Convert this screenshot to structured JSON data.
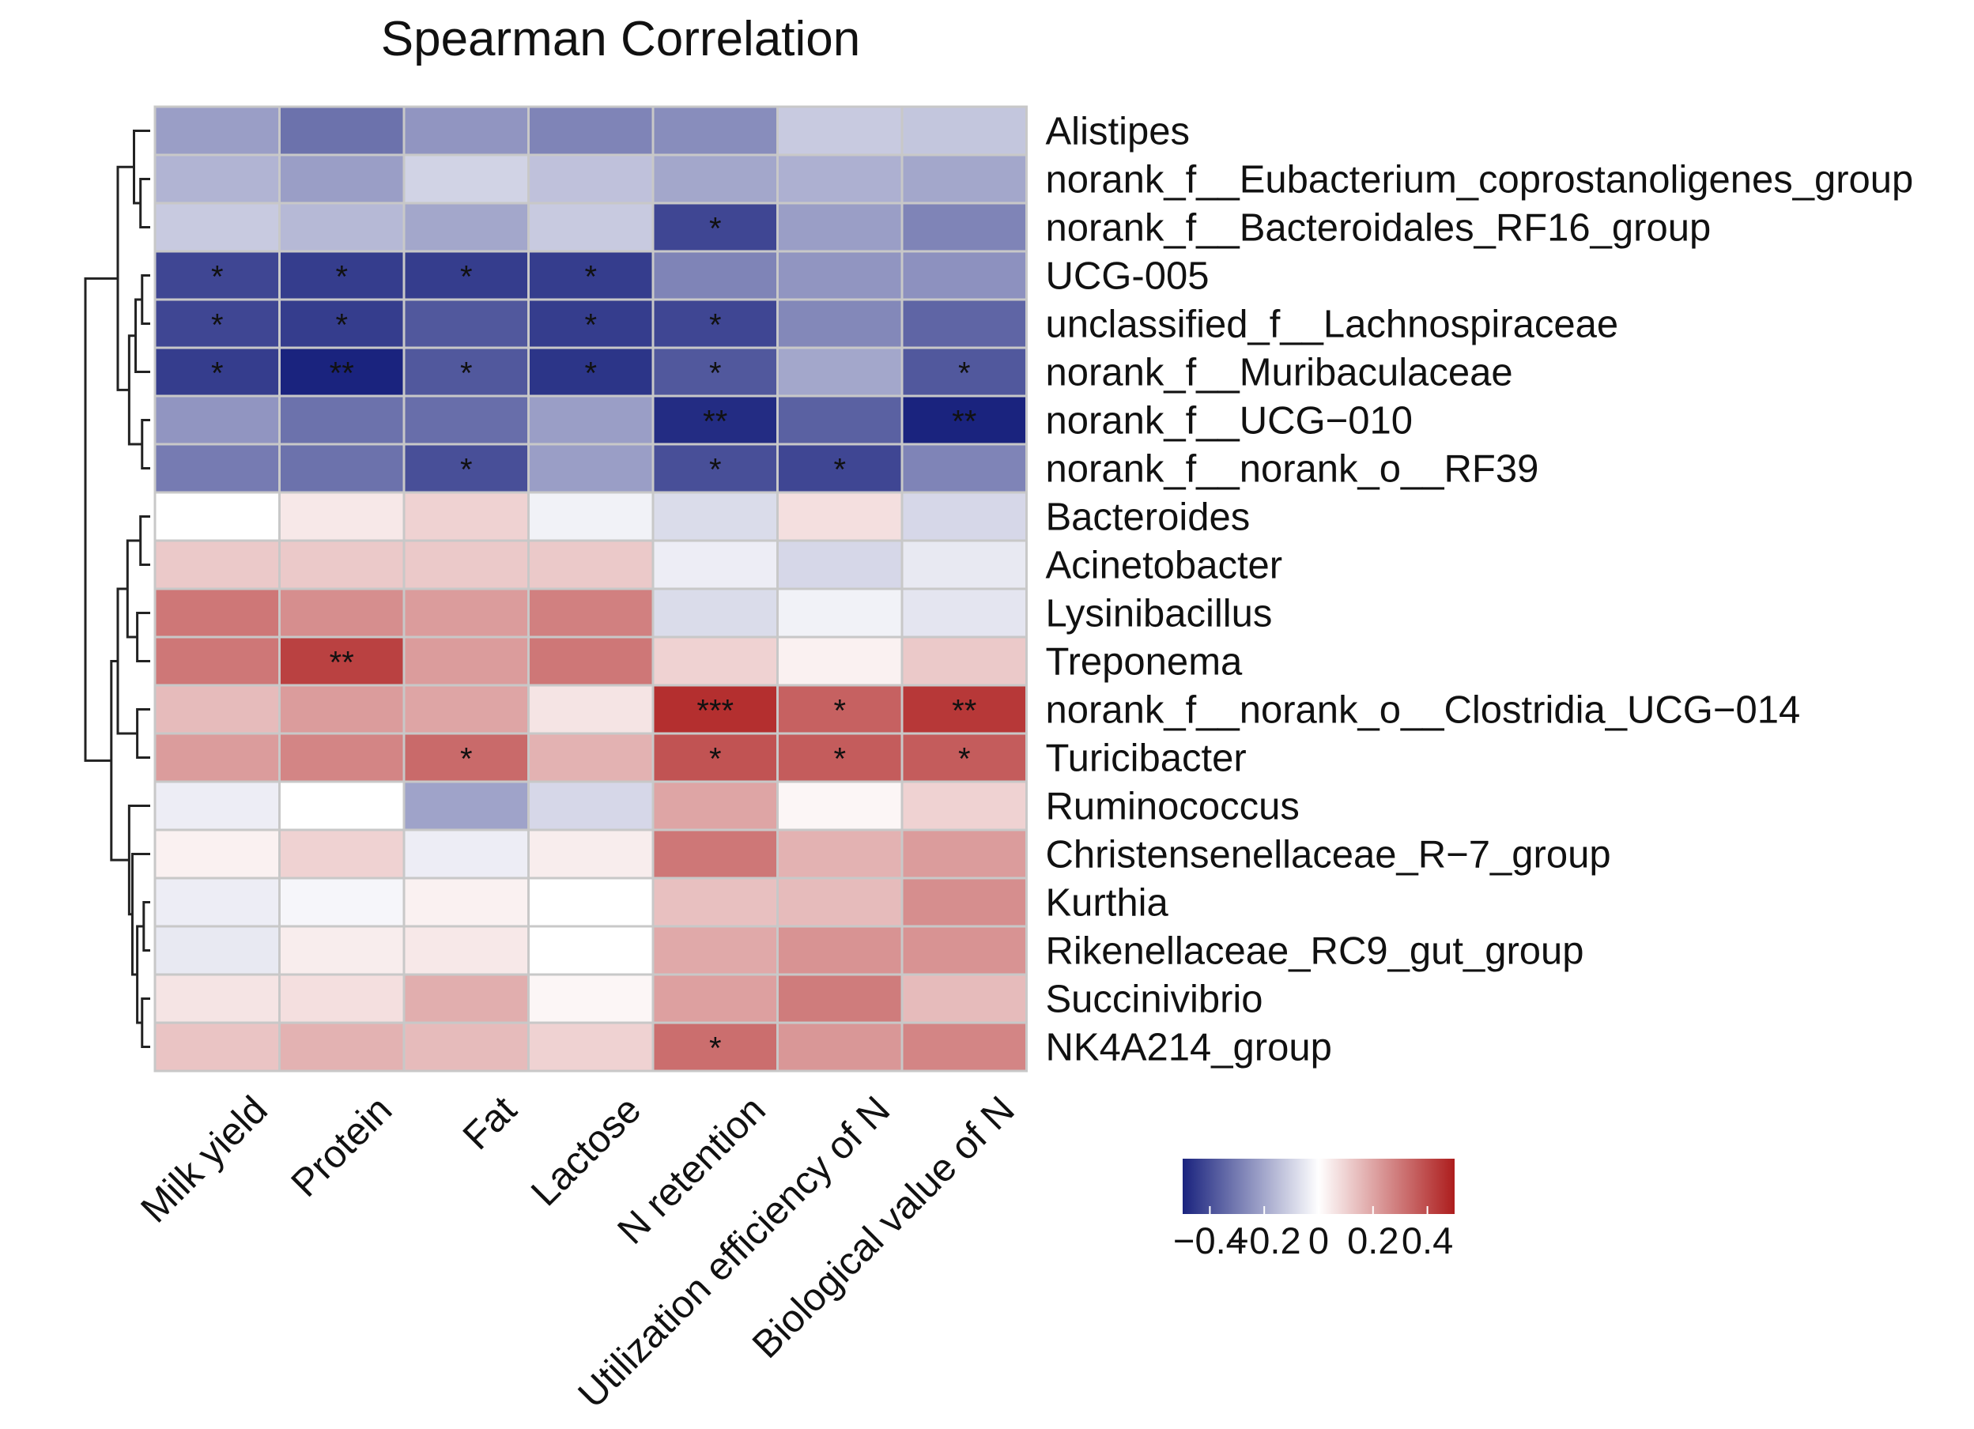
{
  "chart_data": {
    "type": "heatmap",
    "title": "Spearman Correlation",
    "rows": [
      "Alistipes",
      "norank_f__Eubacterium_coprostanoligenes_group",
      "norank_f__Bacteroidales_RF16_group",
      "UCG-005",
      "unclassified_f__Lachnospiraceae",
      "norank_f__Muribaculaceae",
      "norank_f__UCG−010",
      "norank_f__norank_o__RF39",
      "Bacteroides",
      "Acinetobacter",
      "Lysinibacillus",
      "Treponema",
      "norank_f__norank_o__Clostridia_UCG−014",
      "Turicibacter",
      "Ruminococcus",
      "Christensenellaceae_R−7_group",
      "Kurthia",
      "Rikenellaceae_RC9_gut_group",
      "Succinivibrio",
      "NK4A214_group"
    ],
    "columns": [
      "Milk yield",
      "Protein",
      "Fat",
      "Lactose",
      "N retention",
      "Utilization efficiency of N",
      "Biological value of N"
    ],
    "values": [
      [
        -0.22,
        -0.32,
        -0.24,
        -0.28,
        -0.26,
        -0.12,
        -0.13
      ],
      [
        -0.17,
        -0.22,
        -0.1,
        -0.14,
        -0.2,
        -0.18,
        -0.2
      ],
      [
        -0.12,
        -0.16,
        -0.2,
        -0.12,
        -0.42,
        -0.22,
        -0.28
      ],
      [
        -0.42,
        -0.44,
        -0.44,
        -0.44,
        -0.28,
        -0.24,
        -0.25
      ],
      [
        -0.42,
        -0.44,
        -0.38,
        -0.44,
        -0.42,
        -0.27,
        -0.35
      ],
      [
        -0.44,
        -0.5,
        -0.38,
        -0.46,
        -0.38,
        -0.2,
        -0.38
      ],
      [
        -0.24,
        -0.32,
        -0.33,
        -0.22,
        -0.48,
        -0.36,
        -0.52
      ],
      [
        -0.3,
        -0.32,
        -0.4,
        -0.22,
        -0.4,
        -0.42,
        -0.28
      ],
      [
        0.0,
        0.05,
        0.1,
        -0.03,
        -0.08,
        0.07,
        -0.09
      ],
      [
        0.12,
        0.12,
        0.12,
        0.12,
        -0.04,
        -0.09,
        -0.05
      ],
      [
        0.3,
        0.25,
        0.22,
        0.28,
        -0.08,
        -0.03,
        -0.06
      ],
      [
        0.3,
        0.42,
        0.22,
        0.3,
        0.1,
        0.03,
        0.12
      ],
      [
        0.15,
        0.22,
        0.2,
        0.06,
        0.46,
        0.35,
        0.44
      ],
      [
        0.22,
        0.27,
        0.33,
        0.17,
        0.38,
        0.36,
        0.36
      ],
      [
        -0.04,
        0.0,
        -0.21,
        -0.09,
        0.2,
        0.02,
        0.1
      ],
      [
        0.03,
        0.1,
        -0.04,
        0.04,
        0.3,
        0.17,
        0.22
      ],
      [
        -0.04,
        -0.02,
        0.03,
        0.0,
        0.14,
        0.15,
        0.25
      ],
      [
        -0.05,
        0.04,
        0.05,
        0.0,
        0.19,
        0.24,
        0.24
      ],
      [
        0.06,
        0.07,
        0.18,
        0.02,
        0.21,
        0.29,
        0.15
      ],
      [
        0.13,
        0.17,
        0.15,
        0.1,
        0.32,
        0.23,
        0.27
      ]
    ],
    "significance": [
      [
        "",
        "",
        "",
        "",
        "",
        "",
        ""
      ],
      [
        "",
        "",
        "",
        "",
        "",
        "",
        ""
      ],
      [
        "",
        "",
        "",
        "",
        "*",
        "",
        ""
      ],
      [
        "*",
        "*",
        "*",
        "*",
        "",
        "",
        ""
      ],
      [
        "*",
        "*",
        "",
        "*",
        "*",
        "",
        ""
      ],
      [
        "*",
        "**",
        "*",
        "*",
        "*",
        "",
        "*"
      ],
      [
        "",
        "",
        "",
        "",
        "**",
        "",
        "**"
      ],
      [
        "",
        "",
        "*",
        "",
        "*",
        "*",
        ""
      ],
      [
        "",
        "",
        "",
        "",
        "",
        "",
        ""
      ],
      [
        "",
        "",
        "",
        "",
        "",
        "",
        ""
      ],
      [
        "",
        "",
        "",
        "",
        "",
        "",
        ""
      ],
      [
        "",
        "**",
        "",
        "",
        "",
        "",
        ""
      ],
      [
        "",
        "",
        "",
        "",
        "***",
        "*",
        "**"
      ],
      [
        "",
        "",
        "*",
        "",
        "*",
        "*",
        "*"
      ],
      [
        "",
        "",
        "",
        "",
        "",
        "",
        ""
      ],
      [
        "",
        "",
        "",
        "",
        "",
        "",
        ""
      ],
      [
        "",
        "",
        "",
        "",
        "",
        "",
        ""
      ],
      [
        "",
        "",
        "",
        "",
        "",
        "",
        ""
      ],
      [
        "",
        "",
        "",
        "",
        "",
        "",
        ""
      ],
      [
        "",
        "",
        "",
        "",
        "*",
        "",
        ""
      ]
    ],
    "colorscale": {
      "min": -0.5,
      "max": 0.5,
      "low_color": "#1a237e",
      "mid_color": "#ffffff",
      "high_color": "#ad1d1d"
    },
    "legend": {
      "ticks": [
        -0.4,
        -0.2,
        0,
        0.2,
        0.4
      ],
      "tick_labels": [
        "−0.4",
        "−0.2",
        "0",
        "0.2",
        "0.4"
      ],
      "placement": "bottom-right"
    },
    "cell_border_color": "#c8c8c8",
    "dendrogram": "row clustering tree on left"
  }
}
